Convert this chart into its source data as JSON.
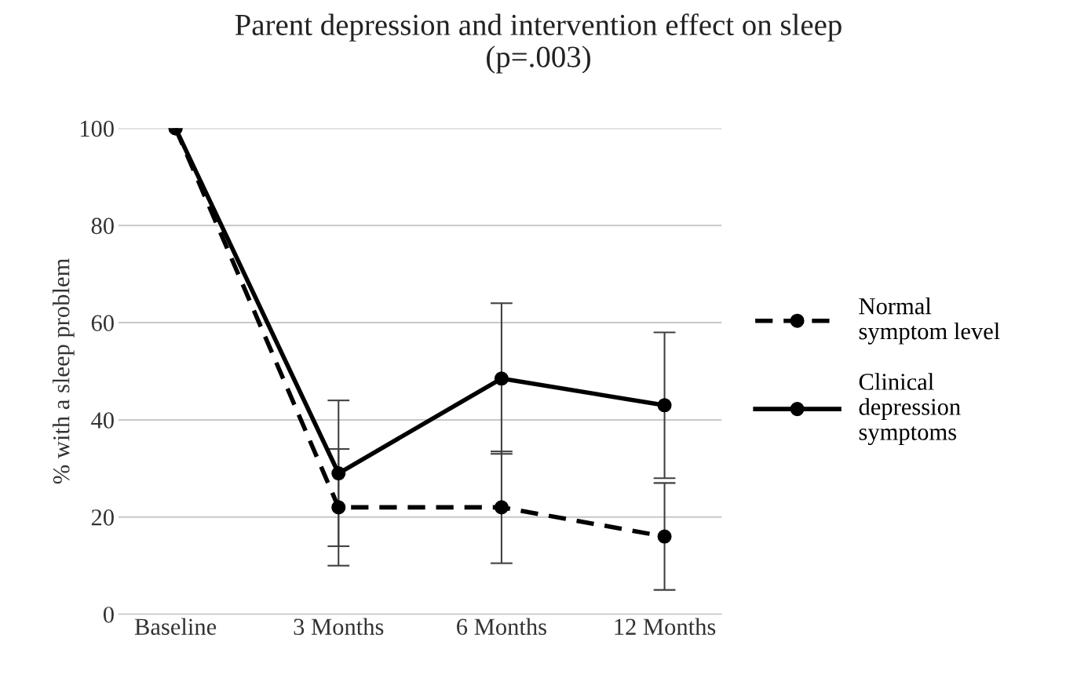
{
  "chart_data": {
    "type": "line",
    "title": "Parent depression and intervention effect on sleep\n(p=.003)",
    "ylabel": "% with a sleep problem",
    "categories": [
      "Baseline",
      "3 Months",
      "6 Months",
      "12 Months"
    ],
    "series": [
      {
        "name": "Normal\nsymptom level",
        "color": "#000000",
        "line_style": "dashed",
        "values": [
          100,
          22,
          22,
          16
        ],
        "errors": [
          null,
          12,
          11.5,
          11
        ]
      },
      {
        "name": "Clinical\ndepression\nsymptoms",
        "color": "#000000",
        "line_style": "solid",
        "values": [
          100,
          29,
          48.5,
          43
        ],
        "errors": [
          null,
          15,
          15.5,
          15
        ]
      }
    ],
    "ylim": [
      0,
      100
    ],
    "yticks": [
      0,
      20,
      40,
      60,
      80,
      100
    ],
    "grid": "y",
    "legend": "right",
    "marker": "circle"
  }
}
